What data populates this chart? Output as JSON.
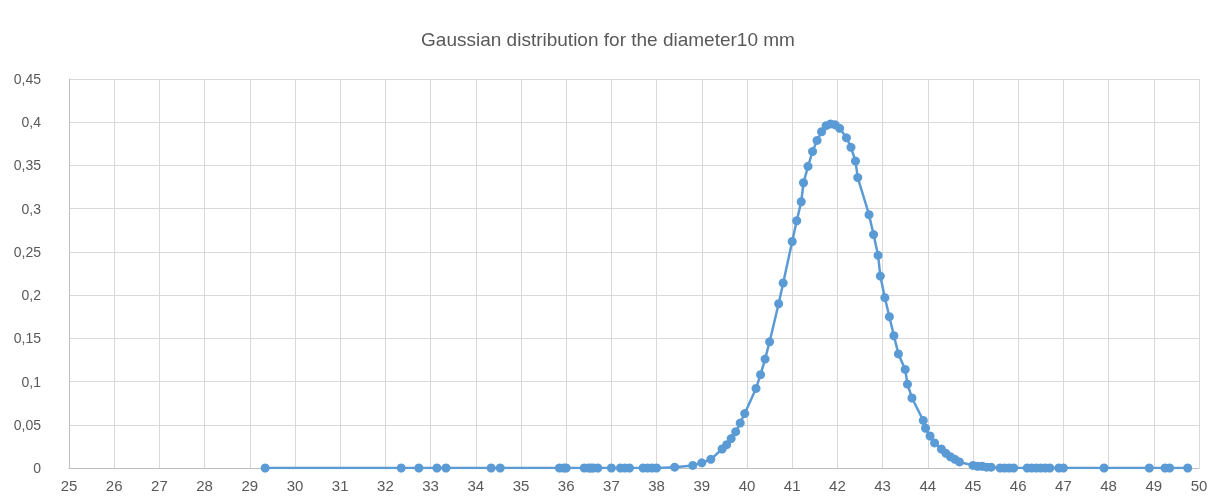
{
  "chart_data": {
    "type": "line",
    "title": "Gaussian distribution for the diameter10 mm",
    "marker": "circle",
    "grid": true,
    "xlim": [
      25,
      50
    ],
    "xticks": [
      25,
      26,
      27,
      28,
      29,
      30,
      31,
      32,
      33,
      34,
      35,
      36,
      37,
      38,
      39,
      40,
      41,
      42,
      43,
      44,
      45,
      46,
      47,
      48,
      49,
      50
    ],
    "ylim": [
      0,
      0.45
    ],
    "yticks": [
      0,
      {
        "value": 0.05,
        "label": "0,05"
      },
      {
        "value": 0.1,
        "label": "0,1"
      },
      {
        "value": 0.15,
        "label": "0,15"
      },
      {
        "value": 0.2,
        "label": "0,2"
      },
      {
        "value": 0.25,
        "label": "0,25"
      },
      {
        "value": 0.3,
        "label": "0,3"
      },
      {
        "value": 0.35,
        "label": "0,35"
      },
      {
        "value": 0.4,
        "label": "0,4"
      },
      {
        "value": 0.45,
        "label": "0,45"
      }
    ],
    "series": [
      {
        "color": "#5b9bd5",
        "x": [
          29.34,
          32.35,
          32.74,
          33.14,
          33.34,
          34.34,
          34.54,
          35.85,
          35.95,
          36.0,
          36.4,
          36.5,
          36.55,
          36.6,
          36.7,
          37.0,
          37.2,
          37.3,
          37.4,
          37.7,
          37.8,
          37.9,
          38.0,
          38.4,
          38.8,
          39.0,
          39.2,
          39.45,
          39.55,
          39.65,
          39.75,
          39.85,
          39.95,
          40.2,
          40.3,
          40.4,
          40.5,
          40.7,
          40.8,
          41.0,
          41.1,
          41.2,
          41.25,
          41.35,
          41.45,
          41.55,
          41.65,
          41.75,
          41.85,
          41.95,
          42.05,
          42.2,
          42.3,
          42.4,
          42.45,
          42.7,
          42.8,
          42.9,
          42.95,
          43.05,
          43.15,
          43.25,
          43.35,
          43.5,
          43.55,
          43.65,
          43.9,
          43.95,
          44.05,
          44.15,
          44.3,
          44.4,
          44.5,
          44.6,
          44.7,
          45.0,
          45.1,
          45.2,
          45.3,
          45.4,
          45.6,
          45.7,
          45.8,
          45.9,
          46.2,
          46.3,
          46.4,
          46.5,
          46.6,
          46.7,
          46.9,
          47.0,
          47.9,
          48.9,
          49.25,
          49.35,
          49.75
        ],
        "values": [
          0,
          0,
          0,
          0,
          0,
          0,
          0,
          0,
          0,
          0,
          0,
          0,
          0,
          0,
          0,
          0,
          0,
          0,
          0,
          0,
          0,
          0,
          0,
          0.001,
          0.003,
          0.006,
          0.01,
          0.022,
          0.027,
          0.034,
          0.042,
          0.052,
          0.063,
          0.092,
          0.108,
          0.126,
          0.146,
          0.19,
          0.214,
          0.262,
          0.286,
          0.308,
          0.33,
          0.349,
          0.366,
          0.379,
          0.389,
          0.396,
          0.398,
          0.397,
          0.393,
          0.382,
          0.371,
          0.355,
          0.336,
          0.293,
          0.27,
          0.246,
          0.222,
          0.197,
          0.175,
          0.153,
          0.132,
          0.114,
          0.097,
          0.081,
          0.055,
          0.046,
          0.037,
          0.029,
          0.022,
          0.017,
          0.013,
          0.01,
          0.007,
          0.003,
          0.002,
          0.002,
          0.001,
          0.001,
          0,
          0,
          0,
          0,
          0,
          0,
          0,
          0,
          0,
          0,
          0,
          0,
          0,
          0,
          0,
          0,
          0
        ]
      }
    ]
  }
}
